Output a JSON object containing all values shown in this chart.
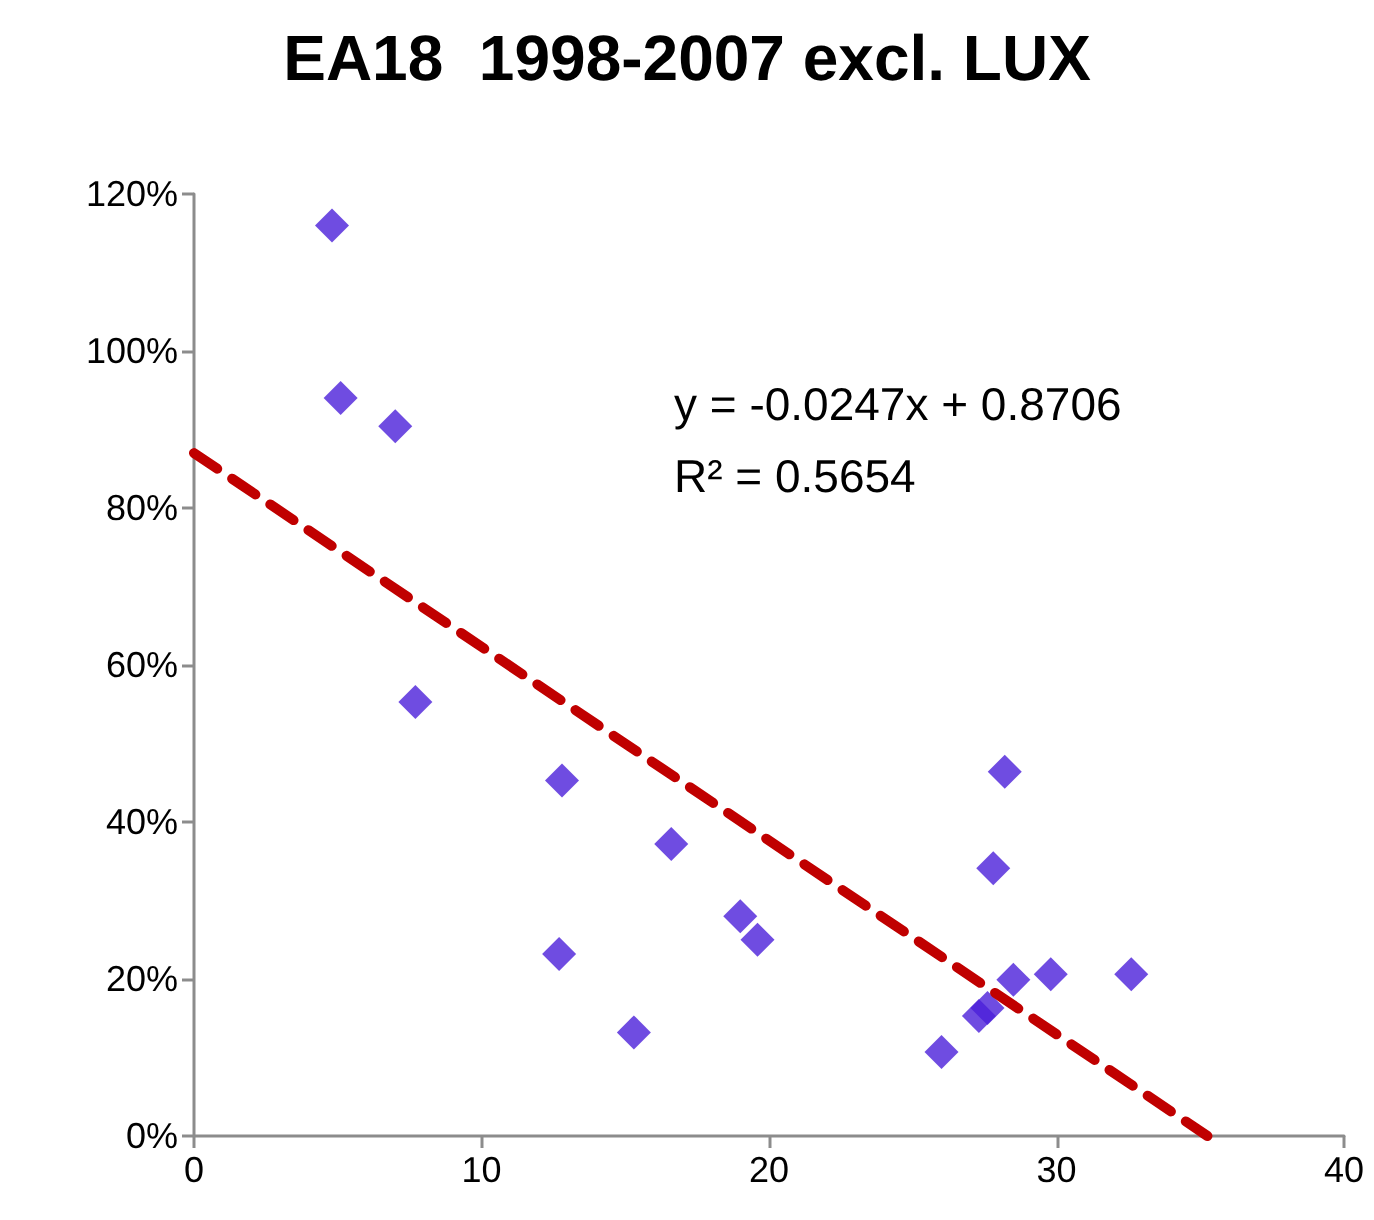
{
  "chart_data": {
    "type": "scatter",
    "title": "EA18  1998-2007 excl. LUX",
    "xlim": [
      0,
      40
    ],
    "xticks": [
      0,
      10,
      20,
      30,
      40
    ],
    "ylim": [
      0,
      1.2
    ],
    "yticks": [
      {
        "value": 0,
        "label": "0%"
      },
      {
        "value": 0.2,
        "label": "20%"
      },
      {
        "value": 0.4,
        "label": "40%"
      },
      {
        "value": 0.6,
        "label": "60%"
      },
      {
        "value": 0.8,
        "label": "80%"
      },
      {
        "value": 1.0,
        "label": "100%"
      },
      {
        "value": 1.2,
        "label": "120%"
      }
    ],
    "grid": false,
    "marker": "diamond",
    "series": [
      {
        "color": "#4b1fd9",
        "x": [
          4.8,
          5.1,
          7.0,
          7.7,
          12.8,
          12.7,
          15.3,
          16.6,
          19.0,
          19.6,
          26.0,
          27.3,
          27.6,
          28.2,
          27.8,
          28.5,
          29.8,
          32.6
        ],
        "values": [
          1.16,
          0.94,
          0.904,
          0.553,
          0.453,
          0.232,
          0.132,
          0.372,
          0.28,
          0.25,
          0.107,
          0.153,
          0.163,
          0.464,
          0.341,
          0.199,
          0.206,
          0.206
        ]
      },
      {
        "type": "line",
        "color": "#c00000",
        "marker": "none",
        "line_style": "dashed",
        "x": [
          0,
          35.25
        ],
        "values": [
          0.87,
          0
        ]
      }
    ],
    "annotations": [
      "y = -0.0247x + 0.8706",
      "R² = 0.5654"
    ]
  }
}
